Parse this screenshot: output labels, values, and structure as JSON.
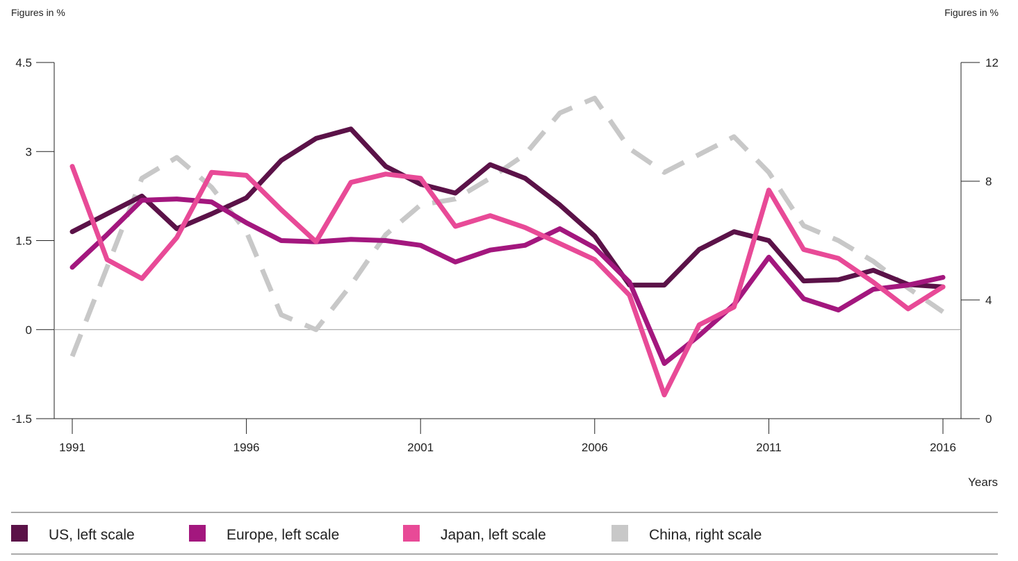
{
  "chart_data": {
    "type": "line",
    "left_axis_unit": "Figures in %",
    "right_axis_unit": "Figures in %",
    "xlabel": "Years",
    "x": [
      1991,
      1992,
      1993,
      1994,
      1995,
      1996,
      1997,
      1998,
      1999,
      2000,
      2001,
      2002,
      2003,
      2004,
      2005,
      2006,
      2007,
      2008,
      2009,
      2010,
      2011,
      2012,
      2013,
      2014,
      2015,
      2016
    ],
    "x_ticks": [
      "1991",
      "1996",
      "2001",
      "2006",
      "2011",
      "2016"
    ],
    "left_ylim": [
      -1.5,
      4.5
    ],
    "left_yticks": [
      "4.5",
      "3",
      "1.5",
      "0",
      "-1.5"
    ],
    "right_ylim": [
      0,
      12
    ],
    "right_yticks": [
      "12",
      "8",
      "4",
      "0"
    ],
    "zero_line": true,
    "grid": false,
    "legend_position": "bottom",
    "series": [
      {
        "name": "US, left scale",
        "axis": "left",
        "color": "#5b1248",
        "dashed": false,
        "values": [
          1.65,
          1.95,
          2.25,
          1.7,
          1.95,
          2.22,
          2.85,
          3.22,
          3.38,
          2.75,
          2.45,
          2.3,
          2.78,
          2.55,
          2.1,
          1.58,
          0.75,
          0.75,
          1.35,
          1.65,
          1.5,
          0.82,
          0.84,
          1.0,
          0.76,
          0.72
        ]
      },
      {
        "name": "Europe, left scale",
        "axis": "left",
        "color": "#a3177e",
        "dashed": false,
        "values": [
          1.05,
          1.6,
          2.18,
          2.2,
          2.15,
          1.8,
          1.5,
          1.48,
          1.52,
          1.5,
          1.42,
          1.14,
          1.34,
          1.42,
          1.7,
          1.38,
          0.8,
          -0.57,
          -0.1,
          0.42,
          1.22,
          0.52,
          0.33,
          0.68,
          0.75,
          0.88
        ]
      },
      {
        "name": "Japan, left scale",
        "axis": "left",
        "color": "#e84a97",
        "dashed": false,
        "values": [
          2.75,
          1.18,
          0.86,
          1.55,
          2.65,
          2.6,
          2.02,
          1.48,
          2.48,
          2.62,
          2.55,
          1.74,
          1.92,
          1.72,
          1.45,
          1.18,
          0.58,
          -1.1,
          0.08,
          0.38,
          2.35,
          1.35,
          1.2,
          0.8,
          0.35,
          0.72
        ]
      },
      {
        "name": "China, right scale",
        "axis": "right",
        "color": "#c8c8c8",
        "dashed": true,
        "values": [
          2.1,
          5.1,
          8.1,
          8.8,
          7.8,
          6.3,
          3.5,
          3.0,
          4.5,
          6.2,
          7.2,
          7.4,
          8.1,
          8.9,
          10.3,
          10.8,
          9.1,
          8.3,
          8.9,
          9.5,
          8.3,
          6.5,
          6.0,
          5.3,
          4.4,
          3.6
        ]
      }
    ]
  }
}
